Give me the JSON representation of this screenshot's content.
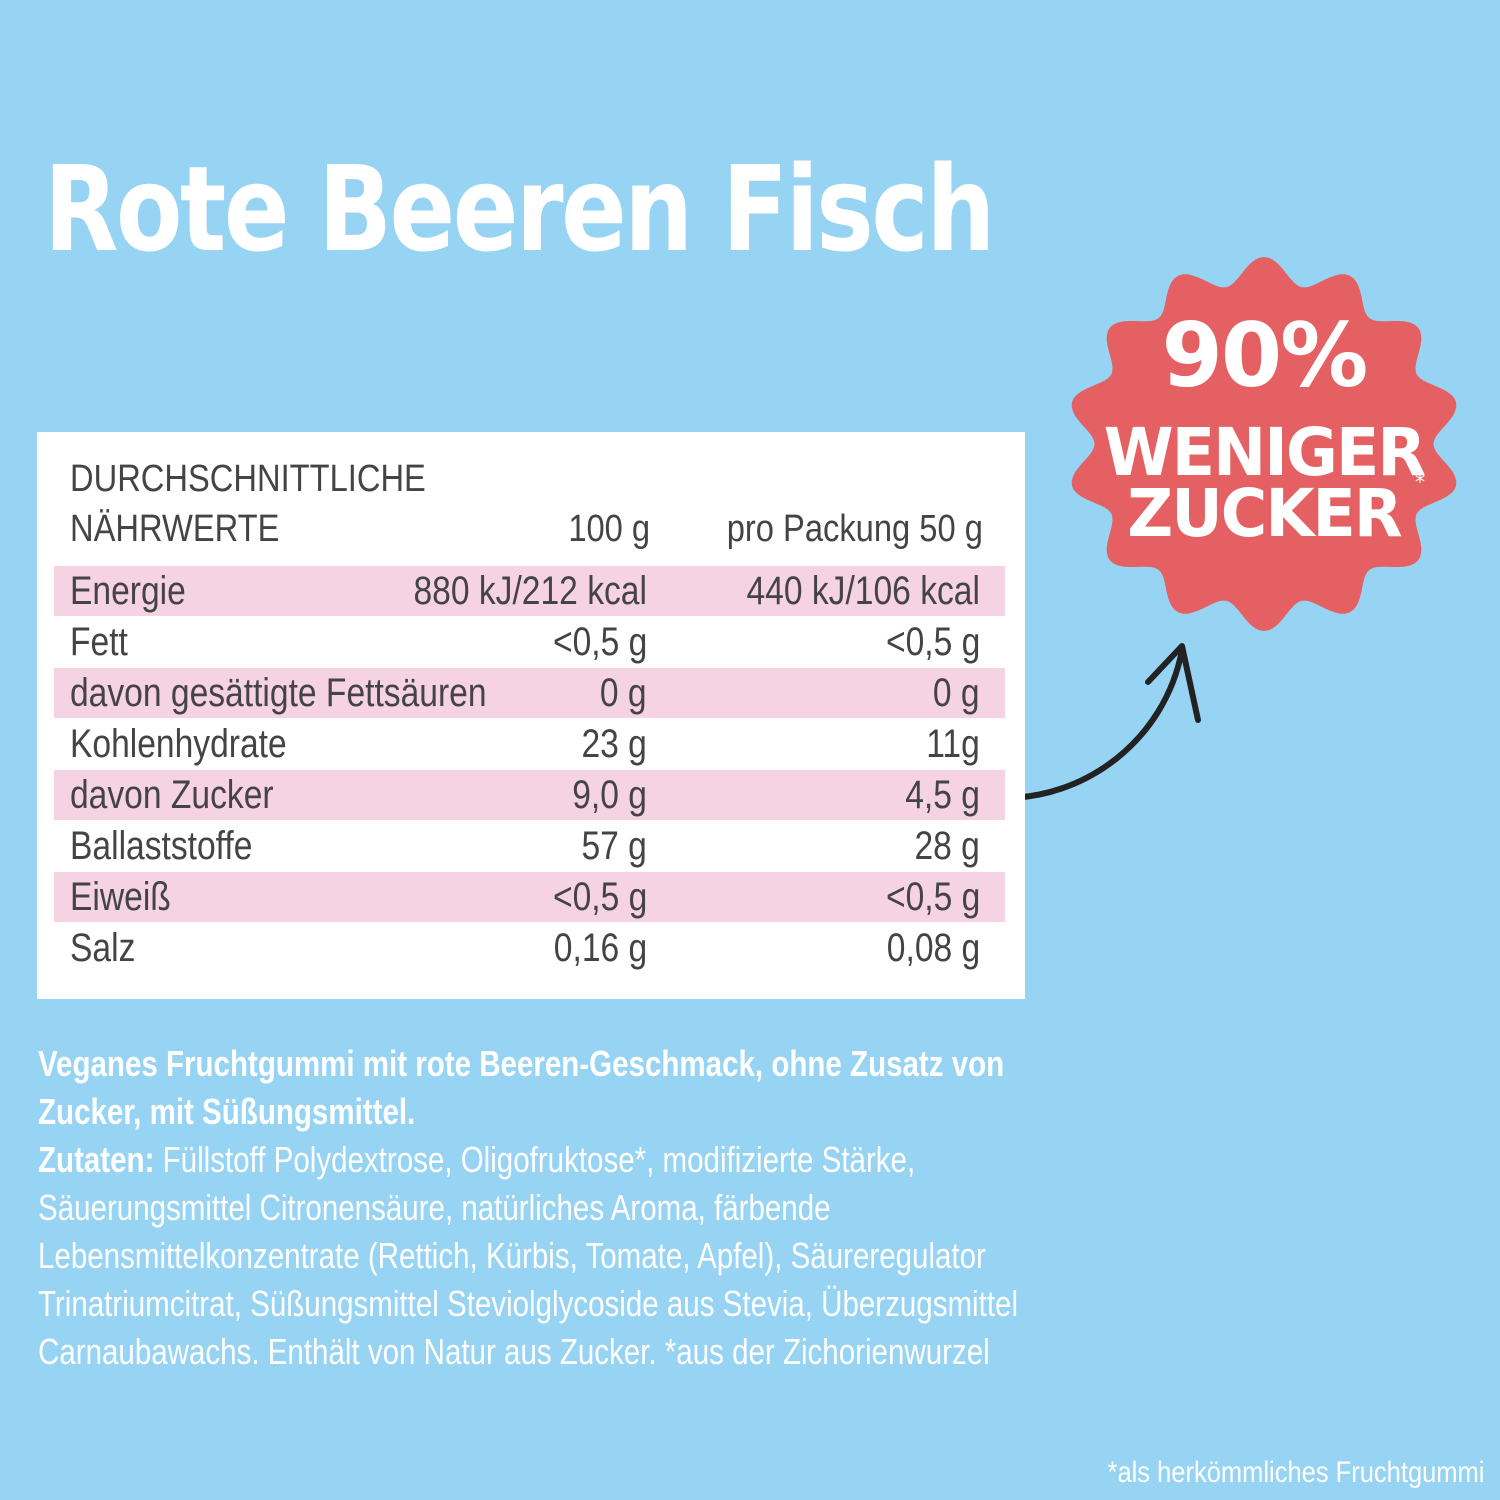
{
  "title": "Rote Beeren Fisch",
  "badge": {
    "percent": "90%",
    "line1": "WENIGER",
    "line2": "ZUCKER",
    "asterisk": "*",
    "color": "#e46063"
  },
  "table": {
    "heading_line1": "DURCHSCHNITTLICHE",
    "heading_line2": "NÄHRWERTE",
    "col1": "100 g",
    "col2": "pro Packung 50 g",
    "rows": [
      {
        "label": "Energie",
        "per100": "880 kJ/212 kcal",
        "perPack": "440 kJ/106 kcal"
      },
      {
        "label": "Fett",
        "per100": "<0,5 g",
        "perPack": "<0,5 g"
      },
      {
        "label": "davon gesättigte Fettsäuren",
        "per100": "0 g",
        "perPack": "0 g"
      },
      {
        "label": "Kohlenhydrate",
        "per100": "23 g",
        "perPack": "11g"
      },
      {
        "label": "davon Zucker",
        "per100": "9,0 g",
        "perPack": "4,5 g"
      },
      {
        "label": "Ballaststoffe",
        "per100": "57 g",
        "perPack": "28 g"
      },
      {
        "label": "Eiweiß",
        "per100": "<0,5 g",
        "perPack": "<0,5 g"
      },
      {
        "label": "Salz",
        "per100": "0,16 g",
        "perPack": "0,08 g"
      }
    ]
  },
  "description": {
    "intro": "Veganes Fruchtgummi mit rote Beeren-Geschmack, ohne Zusatz von Zucker, mit Süßungsmittel.",
    "ingredients_label": "Zutaten:",
    "ingredients": "Füllstoff Polydextrose, Oligofruktose*, modifizierte Stärke, Säuerungsmittel Citronensäure, natürliches Aroma, färbende Lebensmittelkonzentrate (Rettich, Kürbis, Tomate, Apfel), Säureregulator Trinatriumcitrat, Süßungsmittel Steviolglycoside aus Stevia, Überzugsmittel Carnaubawachs. Enthält von Natur aus Zucker. *aus der Zichorienwurzel"
  },
  "footnote": "*als herkömmliches Fruchtgummi"
}
